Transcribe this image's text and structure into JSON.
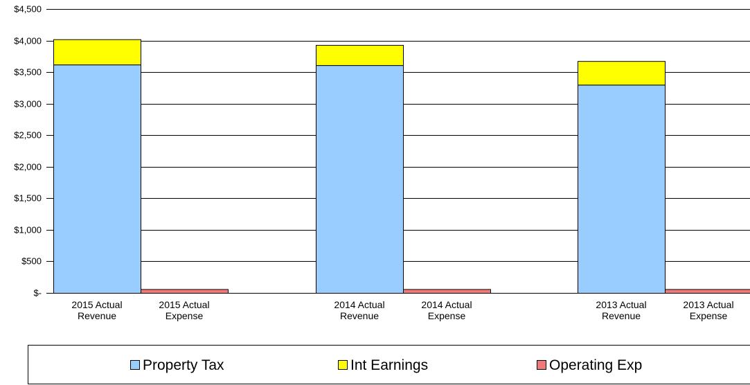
{
  "chart_data": {
    "type": "bar",
    "stacked": true,
    "categories": [
      [
        "2015 Actual",
        "Revenue"
      ],
      [
        "2015 Actual",
        "Expense"
      ],
      [
        "2014 Actual",
        "Revenue"
      ],
      [
        "2014 Actual",
        "Expense"
      ],
      [
        "2013 Actual",
        "Revenue"
      ],
      [
        "2013 Actual",
        "Expense"
      ]
    ],
    "y_tick_labels": [
      "$-",
      "$500",
      "$1,000",
      "$1,500",
      "$2,000",
      "$2,500",
      "$3,000",
      "$3,500",
      "$4,000",
      "$4,500"
    ],
    "ylim": [
      0,
      4500
    ],
    "grid": true,
    "legend_position": "bottom",
    "series": [
      {
        "name": "Property Tax",
        "color": "#99ccff",
        "values": [
          3620,
          0,
          3610,
          0,
          3300,
          0
        ]
      },
      {
        "name": "Int Earnings",
        "color": "#ffff00",
        "values": [
          400,
          0,
          320,
          0,
          375,
          0
        ]
      },
      {
        "name": "Operating Exp",
        "color": "#f07a7a",
        "values": [
          0,
          60,
          0,
          60,
          0,
          60
        ]
      }
    ]
  }
}
